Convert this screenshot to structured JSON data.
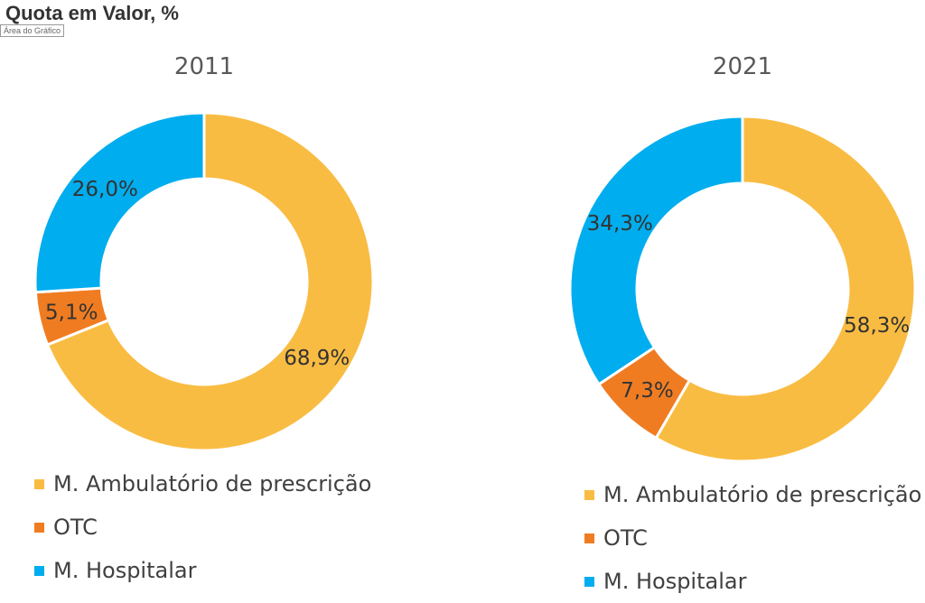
{
  "page": {
    "title": "Quota em Valor, %",
    "tooltip": "Área do Gráfico"
  },
  "chart_data": [
    {
      "type": "pie",
      "donut": true,
      "title": "2011",
      "categories": [
        "M. Ambulatório de prescrição",
        "OTC",
        "M. Hospitalar"
      ],
      "values": [
        68.9,
        5.1,
        26.0
      ],
      "labels": [
        "68,9%",
        "5,1%",
        "26,0%"
      ],
      "colors": [
        "#F9BC42",
        "#F07C22",
        "#00ADEE"
      ],
      "legend": "bottom"
    },
    {
      "type": "pie",
      "donut": true,
      "title": "2021",
      "categories": [
        "M. Ambulatório de prescrição",
        "OTC",
        "M. Hospitalar"
      ],
      "values": [
        58.3,
        7.3,
        34.3
      ],
      "labels": [
        "58,3%",
        "7,3%",
        "34,3%"
      ],
      "colors": [
        "#F9BC42",
        "#F07C22",
        "#00ADEE"
      ],
      "legend": "bottom"
    }
  ]
}
